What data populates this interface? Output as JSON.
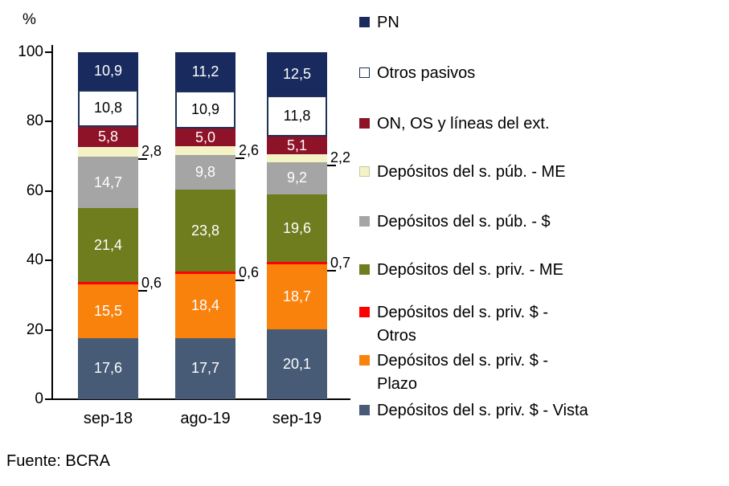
{
  "footer": {
    "source": "Fuente: BCRA"
  },
  "chart_data": {
    "type": "bar",
    "stacked": true,
    "title": "",
    "ylabel": "%",
    "xlabel": "",
    "ylim": [
      0,
      100
    ],
    "yticks": [
      0,
      20,
      40,
      60,
      80,
      100
    ],
    "grid": false,
    "legend_position": "right",
    "categories": [
      "sep-18",
      "ago-19",
      "sep-19"
    ],
    "series": [
      {
        "name": "Depósitos del s. priv. $ - Vista",
        "color": "#475b77",
        "values": [
          17.6,
          17.7,
          20.1
        ],
        "label_style": "inside-white"
      },
      {
        "name": "Depósitos del s. priv. $ - Plazo",
        "color": "#f9820d",
        "values": [
          15.5,
          18.4,
          18.7
        ],
        "label_style": "inside-white"
      },
      {
        "name": "Depósitos del s. priv. $ - Otros",
        "color": "#fe0000",
        "values": [
          0.6,
          0.6,
          0.7
        ],
        "label_style": "outside"
      },
      {
        "name": "Depósitos del s. priv. - ME",
        "color": "#6f7d1e",
        "values": [
          21.4,
          23.8,
          19.6
        ],
        "label_style": "inside-white"
      },
      {
        "name": "Depósitos del s. púb. - $",
        "color": "#a5a5a5",
        "values": [
          14.7,
          9.8,
          9.2
        ],
        "label_style": "inside-white"
      },
      {
        "name": "Depósitos del s. púb. - ME",
        "color": "#f3f3c5",
        "values": [
          2.8,
          2.6,
          2.2
        ],
        "label_style": "outside",
        "swatch_border": "#c9c9a0"
      },
      {
        "name": "ON, OS y líneas del ext.",
        "color": "#8e1228",
        "values": [
          5.8,
          5.0,
          5.1
        ],
        "label_style": "inside-white"
      },
      {
        "name": "Otros pasivos",
        "color": "#ffffff",
        "border": "#1f3257",
        "values": [
          10.8,
          10.9,
          11.8
        ],
        "label_style": "inside-black"
      },
      {
        "name": "PN",
        "color": "#182a5e",
        "values": [
          10.9,
          11.2,
          12.5
        ],
        "label_style": "inside-white"
      }
    ],
    "legend": [
      {
        "series": "PN",
        "lines": [
          "PN"
        ]
      },
      {
        "series": "Otros pasivos",
        "lines": [
          "Otros pasivos"
        ]
      },
      {
        "series": "ON, OS y líneas del ext.",
        "lines": [
          "ON, OS y líneas del ext."
        ]
      },
      {
        "series": "Depósitos del s. púb. - ME",
        "lines": [
          "Depósitos del s. púb. - ME"
        ]
      },
      {
        "series": "Depósitos del s. púb. - $",
        "lines": [
          "Depósitos del s. púb. - $"
        ]
      },
      {
        "series": "Depósitos del s. priv. - ME",
        "lines": [
          "Depósitos del s. priv. - ME"
        ]
      },
      {
        "series": "Depósitos del s. priv. $ - Otros",
        "lines": [
          "Depósitos del s. priv. $ -",
          "Otros"
        ]
      },
      {
        "series": "Depósitos del s. priv. $ - Plazo",
        "lines": [
          "Depósitos del s. priv. $ -",
          "Plazo"
        ]
      },
      {
        "series": "Depósitos del s. priv. $ - Vista",
        "lines": [
          "Depósitos del s. priv. $ - Vista"
        ]
      }
    ]
  }
}
